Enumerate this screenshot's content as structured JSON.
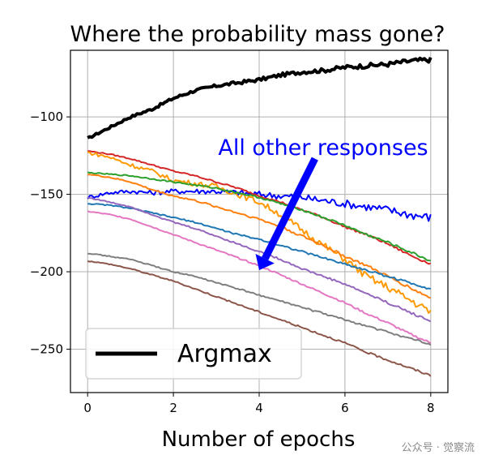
{
  "chart_data": {
    "type": "line",
    "title": "Where the probability mass gone?",
    "xlabel": "Number of epochs",
    "ylabel": "",
    "xlim": [
      -0.4,
      8.4
    ],
    "ylim": [
      -278,
      -57
    ],
    "xticks": [
      0,
      2,
      4,
      6,
      8
    ],
    "yticks": [
      -100,
      -150,
      -200,
      -250
    ],
    "grid": true,
    "legend": {
      "placement": "lower-left",
      "entries": [
        {
          "label": "Argmax",
          "color": "#000000"
        }
      ]
    },
    "annotation": {
      "text": "All other responses",
      "color": "#0000ff",
      "arrow_from": [
        5.3,
        -127
      ],
      "arrow_to": [
        4.0,
        -199
      ]
    },
    "series": [
      {
        "name": "Argmax",
        "color": "#000000",
        "width": 4,
        "x": [
          0,
          0.5,
          1,
          1.5,
          2,
          2.5,
          3,
          3.5,
          4,
          4.5,
          5,
          5.5,
          6,
          6.5,
          7,
          7.5,
          8
        ],
        "y": [
          -114,
          -107,
          -100,
          -95,
          -88,
          -83,
          -80,
          -78,
          -76,
          -73,
          -71,
          -70,
          -68,
          -67,
          -66,
          -64,
          -63
        ]
      },
      {
        "color": "#0000ff",
        "width": 2,
        "x": [
          0,
          0.5,
          1,
          1.5,
          2,
          2.5,
          3,
          3.5,
          4,
          4.5,
          5,
          5.5,
          6,
          6.5,
          7,
          7.5,
          8
        ],
        "y": [
          -152,
          -149,
          -148,
          -149,
          -148,
          -148,
          -148,
          -149,
          -150,
          -151,
          -152,
          -154,
          -156,
          -158,
          -160,
          -163,
          -165
        ]
      },
      {
        "color": "#d62728",
        "width": 2,
        "x": [
          0,
          0.5,
          1,
          1.5,
          2,
          2.5,
          3,
          3.5,
          4,
          4.5,
          5,
          5.5,
          6,
          6.5,
          7,
          7.5,
          8
        ],
        "y": [
          -122,
          -124,
          -127,
          -131,
          -135,
          -138,
          -142,
          -146,
          -151,
          -155,
          -160,
          -165,
          -171,
          -176,
          -182,
          -189,
          -195
        ]
      },
      {
        "color": "#ff9900",
        "width": 2,
        "x": [
          0,
          0.5,
          1,
          1.5,
          2,
          2.5,
          3,
          3.5,
          4,
          4.5,
          5,
          5.5,
          6,
          6.5,
          7,
          7.5,
          8
        ],
        "y": [
          -123,
          -126,
          -131,
          -135,
          -141,
          -143,
          -145,
          -150,
          -155,
          -163,
          -173,
          -183,
          -192,
          -203,
          -210,
          -218,
          -226
        ]
      },
      {
        "color": "#2ca02c",
        "width": 2,
        "x": [
          0,
          0.5,
          1,
          1.5,
          2,
          2.5,
          3,
          3.5,
          4,
          4.5,
          5,
          5.5,
          6,
          6.5,
          7,
          7.5,
          8
        ],
        "y": [
          -136,
          -137,
          -138,
          -140,
          -142,
          -144,
          -146,
          -149,
          -152,
          -156,
          -160,
          -165,
          -170,
          -176,
          -181,
          -187,
          -193
        ]
      },
      {
        "color": "#ff7f0e",
        "width": 2,
        "x": [
          0,
          0.5,
          1,
          1.5,
          2,
          2.5,
          3,
          3.5,
          4,
          4.5,
          5,
          5.5,
          6,
          6.5,
          7,
          7.5,
          8
        ],
        "y": [
          -137,
          -139,
          -142,
          -147,
          -151,
          -154,
          -158,
          -162,
          -166,
          -171,
          -177,
          -183,
          -190,
          -196,
          -203,
          -210,
          -217
        ]
      },
      {
        "color": "#1f77b4",
        "width": 2,
        "x": [
          0,
          0.5,
          1,
          1.5,
          2,
          2.5,
          3,
          3.5,
          4,
          4.5,
          5,
          5.5,
          6,
          6.5,
          7,
          7.5,
          8
        ],
        "y": [
          -156,
          -157,
          -159,
          -162,
          -165,
          -168,
          -172,
          -176,
          -179,
          -183,
          -187,
          -191,
          -195,
          -199,
          -203,
          -207,
          -211
        ]
      },
      {
        "color": "#9467bd",
        "width": 2,
        "x": [
          0,
          0.5,
          1,
          1.5,
          2,
          2.5,
          3,
          3.5,
          4,
          4.5,
          5,
          5.5,
          6,
          6.5,
          7,
          7.5,
          8
        ],
        "y": [
          -152,
          -155,
          -158,
          -163,
          -168,
          -172,
          -177,
          -182,
          -187,
          -192,
          -198,
          -203,
          -208,
          -214,
          -220,
          -226,
          -232
        ]
      },
      {
        "color": "#e377c2",
        "width": 2,
        "x": [
          0,
          0.5,
          1,
          1.5,
          2,
          2.5,
          3,
          3.5,
          4,
          4.5,
          5,
          5.5,
          6,
          6.5,
          7,
          7.5,
          8
        ],
        "y": [
          -161,
          -163,
          -166,
          -171,
          -176,
          -181,
          -186,
          -191,
          -196,
          -202,
          -208,
          -214,
          -220,
          -227,
          -233,
          -240,
          -246
        ]
      },
      {
        "color": "#7f7f7f",
        "width": 2,
        "x": [
          0,
          0.5,
          1,
          1.5,
          2,
          2.5,
          3,
          3.5,
          4,
          4.5,
          5,
          5.5,
          6,
          6.5,
          7,
          7.5,
          8
        ],
        "y": [
          -188,
          -190,
          -192,
          -196,
          -200,
          -203,
          -207,
          -211,
          -215,
          -219,
          -223,
          -227,
          -231,
          -235,
          -239,
          -243,
          -247
        ]
      },
      {
        "color": "#8c564b",
        "width": 2,
        "x": [
          0,
          0.5,
          1,
          1.5,
          2,
          2.5,
          3,
          3.5,
          4,
          4.5,
          5,
          5.5,
          6,
          6.5,
          7,
          7.5,
          8
        ],
        "y": [
          -193,
          -195,
          -198,
          -202,
          -206,
          -211,
          -216,
          -221,
          -226,
          -231,
          -236,
          -241,
          -246,
          -252,
          -257,
          -262,
          -267
        ]
      }
    ]
  },
  "watermark": "公众号 · 觉察流"
}
